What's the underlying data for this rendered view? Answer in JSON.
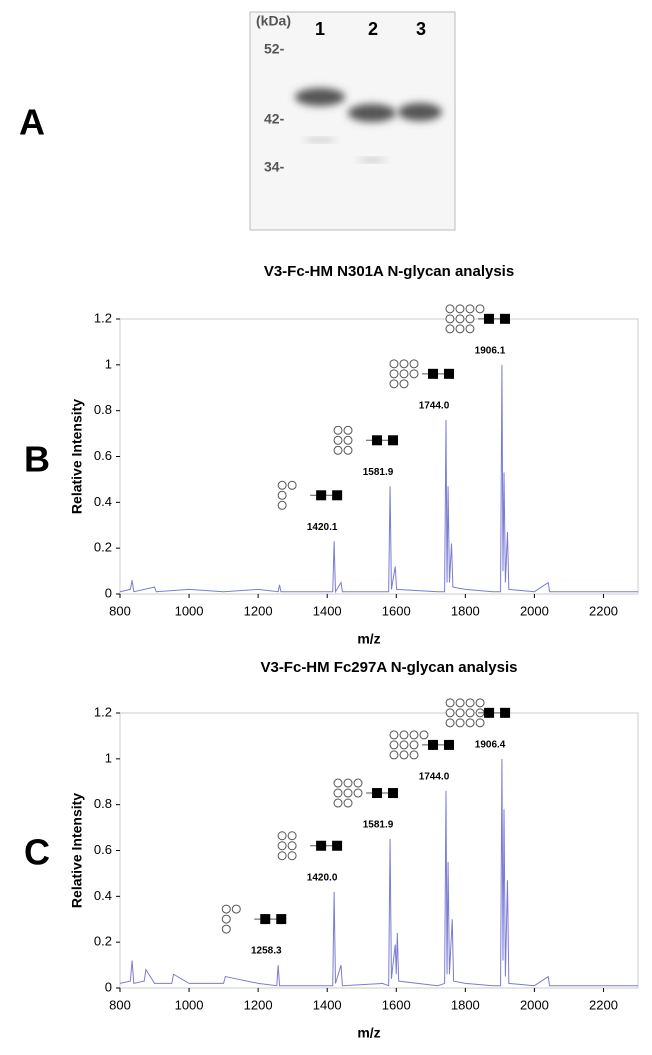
{
  "panel_labels": [
    "A",
    "B",
    "C"
  ],
  "gel": {
    "unit": "(kDa)",
    "markers": [
      "52-",
      "42-",
      "34-"
    ],
    "lanes": [
      "1",
      "2",
      "3"
    ]
  },
  "chart_data": [
    {
      "type": "line",
      "title": "V3-Fc-HM N301A N-glycan analysis",
      "x_label": "m/z",
      "y_label": "Relative Intensity",
      "color": "#7b7bd6",
      "xlim": [
        800,
        2300
      ],
      "xticks": [
        800,
        1000,
        1200,
        1400,
        1600,
        1800,
        2000,
        2200
      ],
      "ylim": [
        0,
        1.2
      ],
      "yticks": [
        0,
        0.2,
        0.4,
        0.6,
        0.8,
        1,
        1.2
      ],
      "x": [
        800,
        830,
        835,
        840,
        900,
        905,
        1000,
        1100,
        1200,
        1258,
        1262,
        1266,
        1380,
        1416,
        1420,
        1424,
        1440,
        1444,
        1560,
        1578,
        1582,
        1586,
        1597,
        1601,
        1720,
        1740,
        1744,
        1747,
        1750,
        1754,
        1760,
        1764,
        1800,
        1880,
        1902,
        1906,
        1909,
        1912,
        1916,
        1922,
        1926,
        2000,
        2040,
        2044,
        2200,
        2300
      ],
      "values": [
        0.01,
        0.02,
        0.06,
        0.01,
        0.03,
        0.01,
        0.02,
        0.01,
        0.02,
        0.01,
        0.04,
        0.01,
        0.01,
        0.01,
        0.23,
        0.01,
        0.05,
        0.01,
        0.01,
        0.01,
        0.47,
        0.02,
        0.12,
        0.02,
        0.01,
        0.01,
        0.76,
        0.05,
        0.47,
        0.05,
        0.22,
        0.03,
        0.02,
        0.01,
        0.01,
        1.0,
        0.1,
        0.53,
        0.05,
        0.27,
        0.02,
        0.01,
        0.05,
        0.01,
        0.01,
        0.01
      ],
      "peak_labels": [
        {
          "value": 1420.1,
          "label": "1420.1"
        },
        {
          "value": 1581.9,
          "label": "1581.9"
        },
        {
          "value": 1744.0,
          "label": "1744.0"
        },
        {
          "value": 1906.1,
          "label": "1906.1"
        }
      ]
    },
    {
      "type": "line",
      "title": "V3-Fc-HM Fc297A N-glycan analysis",
      "x_label": "m/z",
      "y_label": "Relative Intensity",
      "color": "#7b7bd6",
      "xlim": [
        800,
        2300
      ],
      "xticks": [
        800,
        1000,
        1200,
        1400,
        1600,
        1800,
        2000,
        2200
      ],
      "ylim": [
        0,
        1.2
      ],
      "yticks": [
        0,
        0.2,
        0.4,
        0.6,
        0.8,
        1,
        1.2
      ],
      "x": [
        800,
        830,
        835,
        840,
        870,
        875,
        900,
        950,
        955,
        1000,
        1100,
        1105,
        1200,
        1254,
        1258,
        1262,
        1380,
        1416,
        1420,
        1424,
        1440,
        1444,
        1560,
        1578,
        1582,
        1586,
        1597,
        1600,
        1603,
        1607,
        1720,
        1740,
        1744,
        1747,
        1750,
        1754,
        1762,
        1766,
        1800,
        1880,
        1902,
        1906,
        1909,
        1912,
        1916,
        1922,
        1926,
        2000,
        2040,
        2044,
        2200,
        2300
      ],
      "values": [
        0.02,
        0.03,
        0.12,
        0.02,
        0.03,
        0.08,
        0.02,
        0.02,
        0.06,
        0.02,
        0.02,
        0.05,
        0.02,
        0.01,
        0.1,
        0.01,
        0.01,
        0.01,
        0.42,
        0.02,
        0.1,
        0.01,
        0.02,
        0.01,
        0.65,
        0.04,
        0.19,
        0.06,
        0.24,
        0.03,
        0.01,
        0.02,
        0.86,
        0.06,
        0.55,
        0.06,
        0.3,
        0.03,
        0.02,
        0.01,
        0.01,
        1.0,
        0.12,
        0.78,
        0.05,
        0.47,
        0.02,
        0.01,
        0.05,
        0.01,
        0.01,
        0.01
      ],
      "peak_labels": [
        {
          "value": 1258.3,
          "label": "1258.3"
        },
        {
          "value": 1420.0,
          "label": "1420.0"
        },
        {
          "value": 1581.9,
          "label": "1581.9"
        },
        {
          "value": 1744.0,
          "label": "1744.0"
        },
        {
          "value": 1906.4,
          "label": "1906.4"
        }
      ]
    }
  ]
}
